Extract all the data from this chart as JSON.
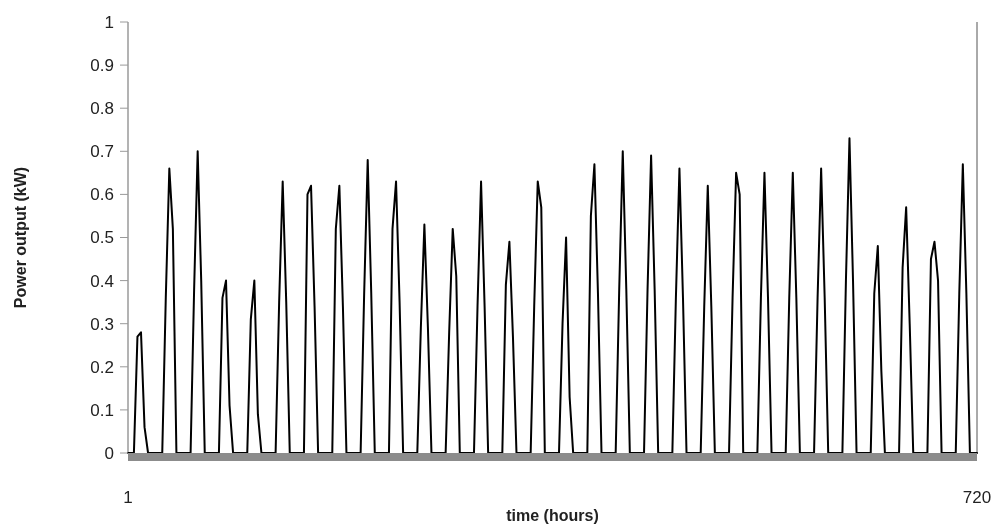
{
  "chart_data": {
    "type": "line",
    "xlabel": "time (hours)",
    "ylabel": "Power output (kW)",
    "xlim": [
      1,
      720
    ],
    "xticks": [
      1,
      720
    ],
    "ylim": [
      0,
      1
    ],
    "yticks": [
      0,
      0.1,
      0.2,
      0.3,
      0.4,
      0.5,
      0.6,
      0.7,
      0.8,
      0.9,
      1
    ],
    "grid": false,
    "marker": "none",
    "line_style": "solid",
    "series": [
      {
        "color": "#000000",
        "x": [
          1,
          6,
          9,
          12,
          15,
          18,
          30,
          33,
          36,
          39,
          42,
          54,
          57,
          60,
          63,
          66,
          78,
          81,
          84,
          87,
          90,
          102,
          105,
          108,
          111,
          114,
          126,
          129,
          132,
          135,
          138,
          150,
          153,
          156,
          159,
          162,
          174,
          177,
          180,
          183,
          186,
          198,
          201,
          204,
          207,
          210,
          222,
          225,
          228,
          231,
          234,
          246,
          249,
          252,
          255,
          258,
          270,
          273,
          276,
          279,
          282,
          294,
          297,
          300,
          303,
          306,
          318,
          321,
          324,
          327,
          330,
          342,
          345,
          348,
          351,
          354,
          366,
          369,
          372,
          375,
          378,
          390,
          393,
          396,
          399,
          402,
          414,
          417,
          420,
          423,
          426,
          438,
          441,
          444,
          447,
          450,
          462,
          465,
          468,
          471,
          474,
          486,
          489,
          492,
          495,
          498,
          510,
          513,
          516,
          519,
          522,
          534,
          537,
          540,
          543,
          546,
          558,
          561,
          564,
          567,
          570,
          582,
          585,
          588,
          591,
          594,
          606,
          609,
          612,
          615,
          618,
          630,
          633,
          636,
          639,
          642,
          654,
          657,
          660,
          663,
          666,
          678,
          681,
          684,
          687,
          690,
          702,
          705,
          708,
          711,
          714,
          720
        ],
        "values": [
          0,
          0,
          0.27,
          0.28,
          0.06,
          0,
          0,
          0.36,
          0.66,
          0.52,
          0,
          0,
          0.38,
          0.7,
          0.4,
          0,
          0,
          0.36,
          0.4,
          0.11,
          0,
          0,
          0.31,
          0.4,
          0.09,
          0,
          0,
          0.35,
          0.63,
          0.35,
          0,
          0,
          0.6,
          0.62,
          0.34,
          0,
          0,
          0.52,
          0.62,
          0.34,
          0,
          0,
          0.37,
          0.68,
          0.37,
          0,
          0,
          0.52,
          0.63,
          0.35,
          0,
          0,
          0.29,
          0.53,
          0.29,
          0,
          0,
          0.28,
          0.52,
          0.41,
          0,
          0,
          0.34,
          0.63,
          0.34,
          0,
          0,
          0.39,
          0.49,
          0.27,
          0,
          0,
          0.34,
          0.63,
          0.57,
          0,
          0,
          0.3,
          0.5,
          0.13,
          0,
          0,
          0.55,
          0.67,
          0.37,
          0,
          0,
          0.38,
          0.7,
          0.38,
          0,
          0,
          0.38,
          0.69,
          0.38,
          0,
          0,
          0.36,
          0.66,
          0.36,
          0,
          0,
          0.34,
          0.62,
          0.34,
          0,
          0,
          0.36,
          0.65,
          0.6,
          0,
          0,
          0.36,
          0.65,
          0.36,
          0,
          0,
          0.36,
          0.65,
          0.36,
          0,
          0,
          0.36,
          0.66,
          0.36,
          0,
          0,
          0.4,
          0.73,
          0.4,
          0,
          0,
          0.37,
          0.48,
          0.19,
          0,
          0,
          0.43,
          0.57,
          0.3,
          0,
          0,
          0.45,
          0.49,
          0.4,
          0,
          0,
          0.37,
          0.67,
          0.37,
          0,
          0
        ]
      }
    ]
  }
}
